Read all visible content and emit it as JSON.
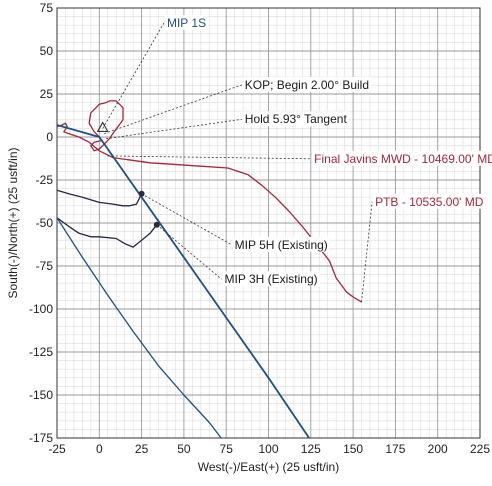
{
  "chart_data": {
    "type": "line",
    "xlabel": "West(-)/East(+) (25 usft/in)",
    "ylabel": "South(-)/North(+) (25 usft/in)",
    "xlim": [
      -25,
      225
    ],
    "ylim": [
      -175,
      75
    ],
    "xticks": [
      -25,
      0,
      25,
      50,
      75,
      100,
      125,
      150,
      175,
      200,
      225
    ],
    "yticks": [
      75,
      50,
      25,
      0,
      -25,
      -50,
      -75,
      -100,
      -125,
      -150,
      -175
    ],
    "grid": true,
    "colors": {
      "planned": "#1f4f86",
      "actual": "#a0283c",
      "offset": "#1f2a4a",
      "leader": "#333333"
    },
    "series": [
      {
        "id": "final_javins",
        "color": "#a0283c",
        "x": [
          -25,
          -22,
          -20,
          -19,
          -21,
          -18,
          -12,
          -6,
          0,
          8,
          30,
          60,
          76,
          88,
          96,
          104,
          112,
          120,
          128,
          136,
          140,
          146,
          150,
          155
        ],
        "y": [
          6,
          7,
          8,
          6,
          3,
          2,
          0,
          -3,
          -8,
          -12,
          -15,
          -17,
          -18,
          -22,
          -28,
          -35,
          -43,
          -52,
          -62,
          -72,
          -82,
          -90,
          -93,
          -96
        ]
      },
      {
        "id": "wellhead_loop",
        "color": "#a0283c",
        "x": [
          0,
          -3,
          -6,
          -5,
          0,
          4,
          6,
          10,
          14,
          14,
          11,
          8,
          6,
          3,
          0,
          -3,
          -5,
          -3,
          2
        ],
        "y": [
          0,
          3,
          8,
          14,
          19,
          20,
          21,
          21,
          17,
          10,
          6,
          2,
          -1,
          -4,
          -7,
          -8,
          -5,
          -3,
          -2
        ]
      },
      {
        "id": "mip_5h",
        "color": "#1f2a4a",
        "x": [
          -25,
          -18,
          -10,
          0,
          8,
          14,
          18,
          22,
          25
        ],
        "y": [
          -31,
          -33,
          -35,
          -38,
          -39,
          -40,
          -40,
          -39,
          -33
        ]
      },
      {
        "id": "mip_3h",
        "color": "#1f2a4a",
        "x": [
          -25,
          -18,
          -12,
          -5,
          0,
          10,
          15,
          20,
          25,
          30,
          34
        ],
        "y": [
          -47,
          -52,
          -56,
          -58,
          -58,
          -59,
          -62,
          -64,
          -60,
          -56,
          -51
        ]
      },
      {
        "id": "plan_tangent",
        "color": "#1f4f86",
        "x": [
          -25,
          0,
          25,
          50,
          75,
          100,
          124
        ],
        "y": [
          7,
          0,
          -35,
          -70,
          -105,
          -140,
          -175
        ]
      },
      {
        "id": "lower_offset",
        "color": "#1f4f86",
        "x": [
          -25,
          -10,
          5,
          20,
          35,
          50,
          65,
          72
        ],
        "y": [
          -47,
          -70,
          -92,
          -113,
          -133,
          -150,
          -166,
          -175
        ]
      }
    ],
    "points": [
      {
        "id": "mip5h_marker",
        "x": 25,
        "y": -33
      },
      {
        "id": "mip3h_marker",
        "x": 34,
        "y": -51
      },
      {
        "id": "surface_marker",
        "x": 2,
        "y": 5
      }
    ],
    "annotations": [
      {
        "id": "mip_1s",
        "text": "MIP 1S",
        "color": "#1f4f86",
        "anchor": "start",
        "target": [
          2,
          5
        ],
        "label_at": [
          40,
          64
        ]
      },
      {
        "id": "kop",
        "text": "KOP; Begin 2.00° Build",
        "color": "#1a1a1a",
        "anchor": "start",
        "target": [
          3,
          2
        ],
        "label_at": [
          86,
          28
        ]
      },
      {
        "id": "hold",
        "text": "Hold 5.93° Tangent",
        "color": "#1a1a1a",
        "anchor": "start",
        "target": [
          4,
          -1
        ],
        "label_at": [
          86,
          8
        ]
      },
      {
        "id": "final_javins",
        "text": "Final Javins MWD - 10469.00' MD",
        "color": "#a0283c",
        "anchor": "start",
        "target": [
          5,
          -11
        ],
        "label_at": [
          127,
          -15
        ]
      },
      {
        "id": "ptb",
        "text": "PTB - 10535.00' MD",
        "color": "#a0283c",
        "anchor": "start",
        "target": [
          155,
          -96
        ],
        "label_at": [
          163,
          -40
        ]
      },
      {
        "id": "mip_5h",
        "text": "MIP 5H (Existing)",
        "color": "#1a1a1a",
        "anchor": "start",
        "target": [
          25,
          -33
        ],
        "label_at": [
          80,
          -65
        ]
      },
      {
        "id": "mip_3h",
        "text": "MIP 3H (Existing)",
        "color": "#1a1a1a",
        "anchor": "start",
        "target": [
          34,
          -51
        ],
        "label_at": [
          74,
          -85
        ]
      }
    ]
  }
}
